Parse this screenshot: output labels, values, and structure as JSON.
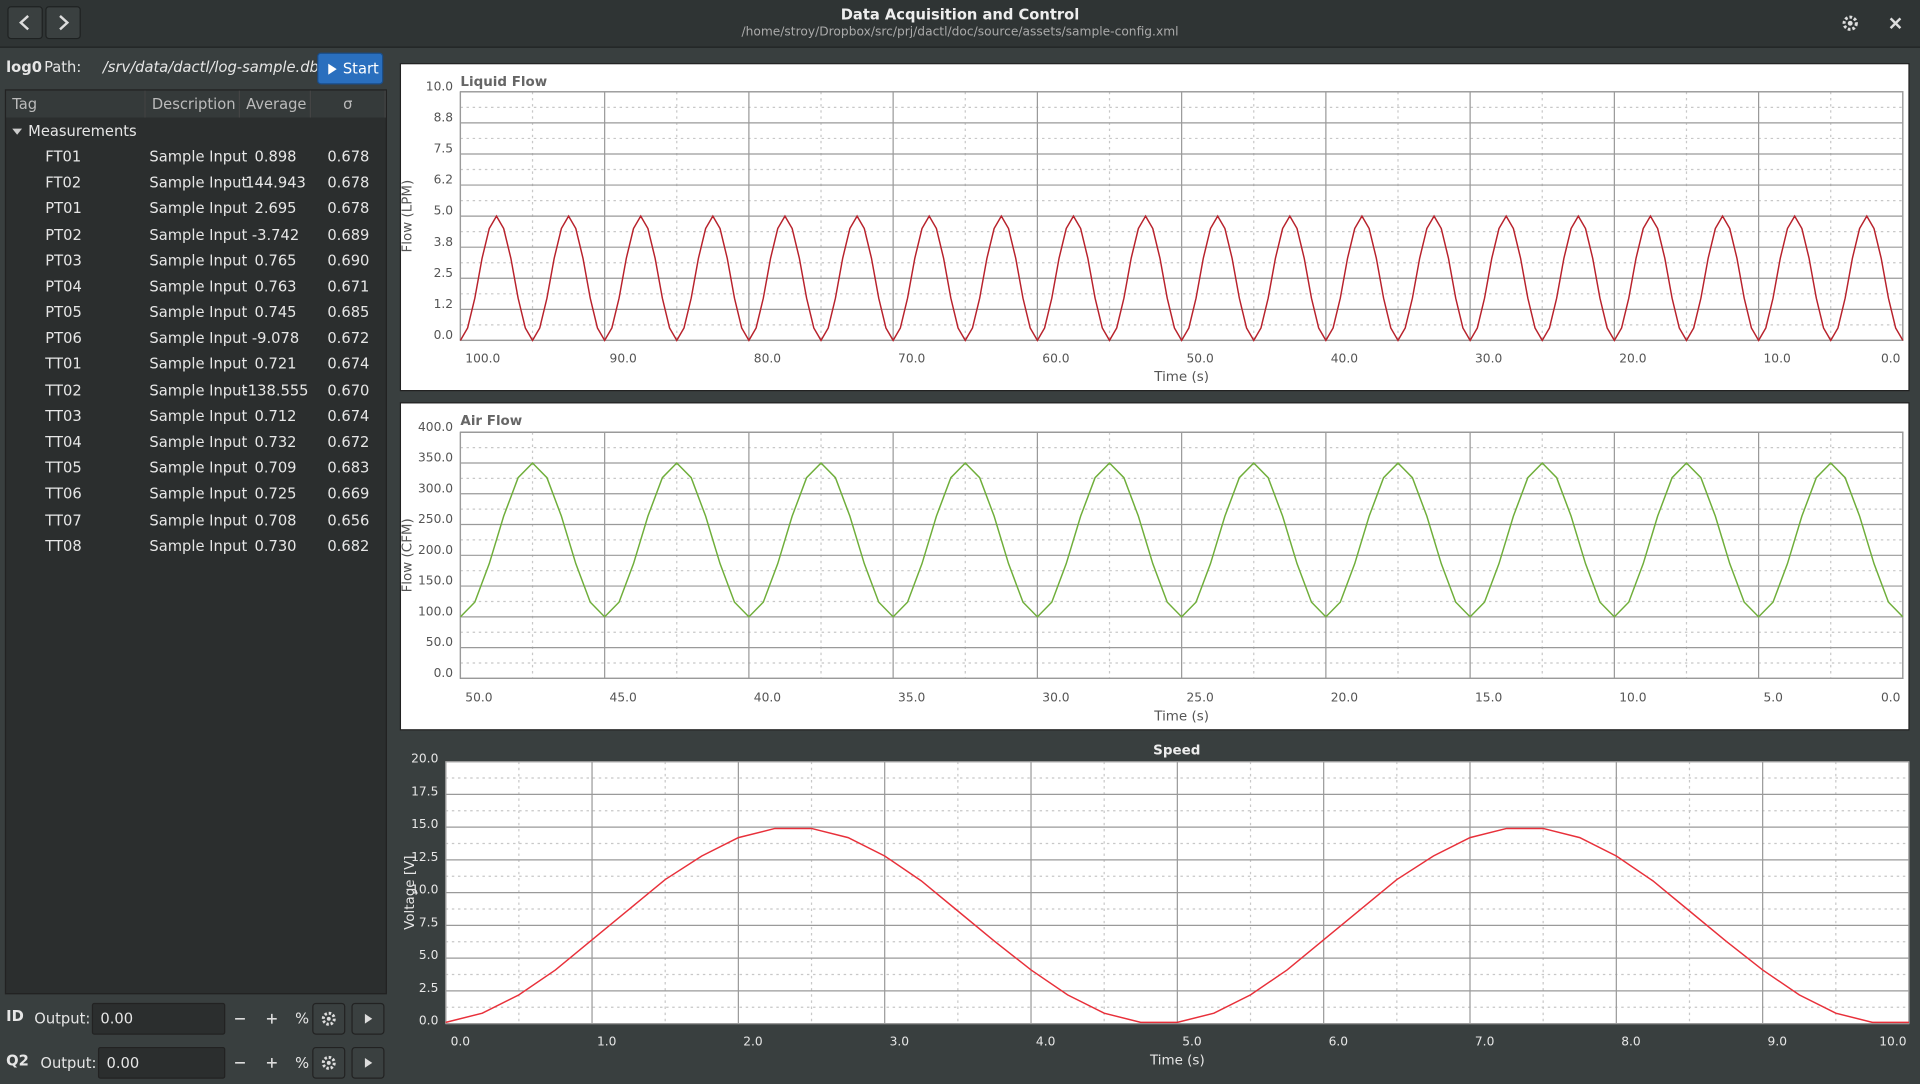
{
  "header": {
    "title": "Data Acquisition and Control",
    "subtitle": "/home/stroy/Dropbox/src/prj/dactl/doc/source/assets/sample-config.xml"
  },
  "log": {
    "name": "log0",
    "path_label": "Path:",
    "path": "/srv/data/dactl/log-sample.db",
    "button": "Start"
  },
  "table": {
    "columns": [
      "Tag",
      "Description",
      "Average",
      "σ"
    ],
    "group": "Measurements",
    "rows": [
      [
        "FT01",
        "Sample Input",
        "0.898",
        "0.678"
      ],
      [
        "FT02",
        "Sample Input",
        "144.943",
        "0.678"
      ],
      [
        "PT01",
        "Sample Input",
        "2.695",
        "0.678"
      ],
      [
        "PT02",
        "Sample Input",
        "-3.742",
        "0.689"
      ],
      [
        "PT03",
        "Sample Input",
        "0.765",
        "0.690"
      ],
      [
        "PT04",
        "Sample Input",
        "0.763",
        "0.671"
      ],
      [
        "PT05",
        "Sample Input",
        "0.745",
        "0.685"
      ],
      [
        "PT06",
        "Sample Input",
        "-9.078",
        "0.672"
      ],
      [
        "TT01",
        "Sample Input",
        "0.721",
        "0.674"
      ],
      [
        "TT02",
        "Sample Input",
        "-138.555",
        "0.670"
      ],
      [
        "TT03",
        "Sample Input",
        "0.712",
        "0.674"
      ],
      [
        "TT04",
        "Sample Input",
        "0.732",
        "0.672"
      ],
      [
        "TT05",
        "Sample Input",
        "0.709",
        "0.683"
      ],
      [
        "TT06",
        "Sample Input",
        "0.725",
        "0.669"
      ],
      [
        "TT07",
        "Sample Input",
        "0.708",
        "0.656"
      ],
      [
        "TT08",
        "Sample Input",
        "0.730",
        "0.682"
      ]
    ]
  },
  "controls": [
    {
      "label": "ID",
      "field": "Output:",
      "value": "0.00",
      "unit": "%"
    },
    {
      "label": "Q2",
      "field": "Output:",
      "value": "0.00",
      "unit": "%"
    }
  ],
  "chart_data": [
    {
      "type": "line",
      "title": "Liquid Flow",
      "x_label": "Time (s)",
      "y_label": "Flow (LPM)",
      "xlim": [
        100,
        0
      ],
      "ylim": [
        0,
        10
      ],
      "grid": true,
      "xticks": [
        {
          "value": 100,
          "label": "100.0"
        },
        {
          "value": 90,
          "label": "90.0"
        },
        {
          "value": 80,
          "label": "80.0"
        },
        {
          "value": 70,
          "label": "70.0"
        },
        {
          "value": 60,
          "label": "60.0"
        },
        {
          "value": 50,
          "label": "50.0"
        },
        {
          "value": 40,
          "label": "40.0"
        },
        {
          "value": 30,
          "label": "30.0"
        },
        {
          "value": 20,
          "label": "20.0"
        },
        {
          "value": 10,
          "label": "10.0"
        },
        {
          "value": 0,
          "label": "0.0"
        }
      ],
      "yticks": [
        {
          "value": 0,
          "label": "0.0"
        },
        {
          "value": 1.25,
          "label": "1.2"
        },
        2.5,
        {
          "value": 3.75,
          "label": "3.8"
        },
        {
          "value": 5,
          "label": "5.0"
        },
        {
          "value": 6.25,
          "label": "6.2"
        },
        7.5,
        {
          "value": 8.75,
          "label": "8.8"
        },
        {
          "value": 10,
          "label": "10.0"
        }
      ],
      "x": [
        100,
        99.5,
        99,
        98.5,
        98,
        97.5,
        97,
        96.5,
        96,
        95.5,
        95,
        94.5,
        94,
        93.5,
        93,
        92.5,
        92,
        91.5,
        91,
        90.5,
        90,
        89.5,
        89,
        88.5,
        88,
        87.5,
        87,
        86.5,
        86,
        85.5,
        85,
        84.5,
        84,
        83.5,
        83,
        82.5,
        82,
        81.5,
        81,
        80.5,
        80,
        79.5,
        79,
        78.5,
        78,
        77.5,
        77,
        76.5,
        76,
        75.5,
        75,
        74.5,
        74,
        73.5,
        73,
        72.5,
        72,
        71.5,
        71,
        70.5,
        70,
        69.5,
        69,
        68.5,
        68,
        67.5,
        67,
        66.5,
        66,
        65.5,
        65,
        64.5,
        64,
        63.5,
        63,
        62.5,
        62,
        61.5,
        61,
        60.5,
        60,
        59.5,
        59,
        58.5,
        58,
        57.5,
        57,
        56.5,
        56,
        55.5,
        55,
        54.5,
        54,
        53.5,
        53,
        52.5,
        52,
        51.5,
        51,
        50.5,
        50,
        49.5,
        49,
        48.5,
        48,
        47.5,
        47,
        46.5,
        46,
        45.5,
        45,
        44.5,
        44,
        43.5,
        43,
        42.5,
        42,
        41.5,
        41,
        40.5,
        40,
        39.5,
        39,
        38.5,
        38,
        37.5,
        37,
        36.5,
        36,
        35.5,
        35,
        34.5,
        34,
        33.5,
        33,
        32.5,
        32,
        31.5,
        31,
        30.5,
        30,
        29.5,
        29,
        28.5,
        28,
        27.5,
        27,
        26.5,
        26,
        25.5,
        25,
        24.5,
        24,
        23.5,
        23,
        22.5,
        22,
        21.5,
        21,
        20.5,
        20,
        19.5,
        19,
        18.5,
        18,
        17.5,
        17,
        16.5,
        16,
        15.5,
        15,
        14.5,
        14,
        13.5,
        13,
        12.5,
        12,
        11.5,
        11,
        10.5,
        10,
        9.5,
        9,
        8.5,
        8,
        7.5,
        7,
        6.5,
        6,
        5.5,
        5,
        4.5,
        4,
        3.5,
        3,
        2.5,
        2,
        1.5,
        1,
        0.5,
        0
      ],
      "series": [
        {
          "color": "#b8222c",
          "values": [
            0,
            0.5,
            1.7,
            3.3,
            4.5,
            5,
            4.5,
            3.3,
            1.7,
            0.5,
            0,
            0.5,
            1.7,
            3.3,
            4.5,
            5,
            4.5,
            3.3,
            1.7,
            0.5,
            0,
            0.5,
            1.7,
            3.3,
            4.5,
            5,
            4.5,
            3.3,
            1.7,
            0.5,
            0,
            0.5,
            1.7,
            3.3,
            4.5,
            5,
            4.5,
            3.3,
            1.7,
            0.5,
            0,
            0.5,
            1.7,
            3.3,
            4.5,
            5,
            4.5,
            3.3,
            1.7,
            0.5,
            0,
            0.5,
            1.7,
            3.3,
            4.5,
            5,
            4.5,
            3.3,
            1.7,
            0.5,
            0,
            0.5,
            1.7,
            3.3,
            4.5,
            5,
            4.5,
            3.3,
            1.7,
            0.5,
            0,
            0.5,
            1.7,
            3.3,
            4.5,
            5,
            4.5,
            3.3,
            1.7,
            0.5,
            0,
            0.5,
            1.7,
            3.3,
            4.5,
            5,
            4.5,
            3.3,
            1.7,
            0.5,
            0,
            0.5,
            1.7,
            3.3,
            4.5,
            5,
            4.5,
            3.3,
            1.7,
            0.5,
            0,
            0.5,
            1.7,
            3.3,
            4.5,
            5,
            4.5,
            3.3,
            1.7,
            0.5,
            0,
            0.5,
            1.7,
            3.3,
            4.5,
            5,
            4.5,
            3.3,
            1.7,
            0.5,
            0,
            0.5,
            1.7,
            3.3,
            4.5,
            5,
            4.5,
            3.3,
            1.7,
            0.5,
            0,
            0.5,
            1.7,
            3.3,
            4.5,
            5,
            4.5,
            3.3,
            1.7,
            0.5,
            0,
            0.5,
            1.7,
            3.3,
            4.5,
            5,
            4.5,
            3.3,
            1.7,
            0.5,
            0,
            0.5,
            1.7,
            3.3,
            4.5,
            5,
            4.5,
            3.3,
            1.7,
            0.5,
            0,
            0.5,
            1.7,
            3.3,
            4.5,
            5,
            4.5,
            3.3,
            1.7,
            0.5,
            0,
            0.5,
            1.7,
            3.3,
            4.5,
            5,
            4.5,
            3.3,
            1.7,
            0.5,
            0,
            0.5,
            1.7,
            3.3,
            4.5,
            5,
            4.5,
            3.3,
            1.7,
            0.5,
            0,
            0.5,
            1.7,
            3.3,
            4.5,
            5,
            4.5,
            3.3,
            1.7,
            0.5,
            0
          ]
        }
      ]
    },
    {
      "type": "line",
      "title": "Air Flow",
      "x_label": "Time (s)",
      "y_label": "Flow (CFM)",
      "xlim": [
        50,
        0
      ],
      "ylim": [
        0,
        400
      ],
      "grid": true,
      "xticks": [
        {
          "value": 50,
          "label": "50.0"
        },
        {
          "value": 45,
          "label": "45.0"
        },
        {
          "value": 40,
          "label": "40.0"
        },
        {
          "value": 35,
          "label": "35.0"
        },
        {
          "value": 30,
          "label": "30.0"
        },
        {
          "value": 25,
          "label": "25.0"
        },
        {
          "value": 20,
          "label": "20.0"
        },
        {
          "value": 15,
          "label": "15.0"
        },
        {
          "value": 10,
          "label": "10.0"
        },
        {
          "value": 5,
          "label": "5.0"
        },
        {
          "value": 0,
          "label": "0.0"
        }
      ],
      "yticks": [
        {
          "value": 0,
          "label": "0.0"
        },
        {
          "value": 50,
          "label": "50.0"
        },
        {
          "value": 100,
          "label": "100.0"
        },
        {
          "value": 150,
          "label": "150.0"
        },
        {
          "value": 200,
          "label": "200.0"
        },
        {
          "value": 250,
          "label": "250.0"
        },
        {
          "value": 300,
          "label": "300.0"
        },
        {
          "value": 350,
          "label": "350.0"
        },
        {
          "value": 400,
          "label": "400.0"
        }
      ],
      "x": [
        50,
        49.5,
        49,
        48.5,
        48,
        47.5,
        47,
        46.5,
        46,
        45.5,
        45,
        44.5,
        44,
        43.5,
        43,
        42.5,
        42,
        41.5,
        41,
        40.5,
        40,
        39.5,
        39,
        38.5,
        38,
        37.5,
        37,
        36.5,
        36,
        35.5,
        35,
        34.5,
        34,
        33.5,
        33,
        32.5,
        32,
        31.5,
        31,
        30.5,
        30,
        29.5,
        29,
        28.5,
        28,
        27.5,
        27,
        26.5,
        26,
        25.5,
        25,
        24.5,
        24,
        23.5,
        23,
        22.5,
        22,
        21.5,
        21,
        20.5,
        20,
        19.5,
        19,
        18.5,
        18,
        17.5,
        17,
        16.5,
        16,
        15.5,
        15,
        14.5,
        14,
        13.5,
        13,
        12.5,
        12,
        11.5,
        11,
        10.5,
        10,
        9.5,
        9,
        8.5,
        8,
        7.5,
        7,
        6.5,
        6,
        5.5,
        5,
        4.5,
        4,
        3.5,
        3,
        2.5,
        2,
        1.5,
        1,
        0.5,
        0
      ],
      "series": [
        {
          "color": "#6fae3a",
          "values": [
            100,
            123.9,
            186.4,
            263.6,
            326.1,
            350,
            326.1,
            263.6,
            186.4,
            123.9,
            100,
            123.9,
            186.4,
            263.6,
            326.1,
            350,
            326.1,
            263.6,
            186.4,
            123.9,
            100,
            123.9,
            186.4,
            263.6,
            326.1,
            350,
            326.1,
            263.6,
            186.4,
            123.9,
            100,
            123.9,
            186.4,
            263.6,
            326.1,
            350,
            326.1,
            263.6,
            186.4,
            123.9,
            100,
            123.9,
            186.4,
            263.6,
            326.1,
            350,
            326.1,
            263.6,
            186.4,
            123.9,
            100,
            123.9,
            186.4,
            263.6,
            326.1,
            350,
            326.1,
            263.6,
            186.4,
            123.9,
            100,
            123.9,
            186.4,
            263.6,
            326.1,
            350,
            326.1,
            263.6,
            186.4,
            123.9,
            100,
            123.9,
            186.4,
            263.6,
            326.1,
            350,
            326.1,
            263.6,
            186.4,
            123.9,
            100,
            123.9,
            186.4,
            263.6,
            326.1,
            350,
            326.1,
            263.6,
            186.4,
            123.9,
            100,
            123.9,
            186.4,
            263.6,
            326.1,
            350,
            326.1,
            263.6,
            186.4,
            123.9,
            100
          ]
        }
      ]
    },
    {
      "type": "line",
      "title": "Speed",
      "x_label": "Time (s)",
      "y_label": "Voltage [V]",
      "xlim": [
        0,
        10
      ],
      "ylim": [
        0,
        20
      ],
      "grid": true,
      "xticks": [
        {
          "value": 0,
          "label": "0.0"
        },
        {
          "value": 1,
          "label": "1.0"
        },
        {
          "value": 2,
          "label": "2.0"
        },
        {
          "value": 3,
          "label": "3.0"
        },
        {
          "value": 4,
          "label": "4.0"
        },
        {
          "value": 5,
          "label": "5.0"
        },
        {
          "value": 6,
          "label": "6.0"
        },
        {
          "value": 7,
          "label": "7.0"
        },
        {
          "value": 8,
          "label": "8.0"
        },
        {
          "value": 9,
          "label": "9.0"
        },
        {
          "value": 10,
          "label": "10.0"
        }
      ],
      "yticks": [
        {
          "value": 0,
          "label": "0.0"
        },
        2.5,
        {
          "value": 5,
          "label": "5.0"
        },
        7.5,
        {
          "value": 10,
          "label": "10.0"
        },
        12.5,
        {
          "value": 15,
          "label": "15.0"
        },
        17.5,
        {
          "value": 20,
          "label": "20.0"
        }
      ],
      "x": [
        0,
        0.25,
        0.5,
        0.75,
        1,
        1.25,
        1.5,
        1.75,
        2,
        2.25,
        2.5,
        2.75,
        3,
        3.25,
        3.5,
        3.75,
        4,
        4.25,
        4.5,
        4.75,
        5,
        5.25,
        5.5,
        5.75,
        6,
        6.25,
        6.5,
        6.75,
        7,
        7.25,
        7.5,
        7.75,
        8,
        8.25,
        8.5,
        8.75,
        9,
        9.25,
        9.5,
        9.75,
        10
      ],
      "series": [
        {
          "color": "#e8303a",
          "values": [
            0.1,
            0.8,
            2.2,
            4.1,
            6.4,
            8.7,
            11,
            12.8,
            14.2,
            14.9,
            14.9,
            14.2,
            12.8,
            10.9,
            8.6,
            6.3,
            4.1,
            2.2,
            0.8,
            0.1,
            0.1,
            0.8,
            2.2,
            4.1,
            6.4,
            8.7,
            11,
            12.8,
            14.2,
            14.9,
            14.9,
            14.2,
            12.8,
            10.9,
            8.6,
            6.3,
            4.1,
            2.2,
            0.8,
            0.1,
            0.1
          ]
        }
      ]
    }
  ]
}
